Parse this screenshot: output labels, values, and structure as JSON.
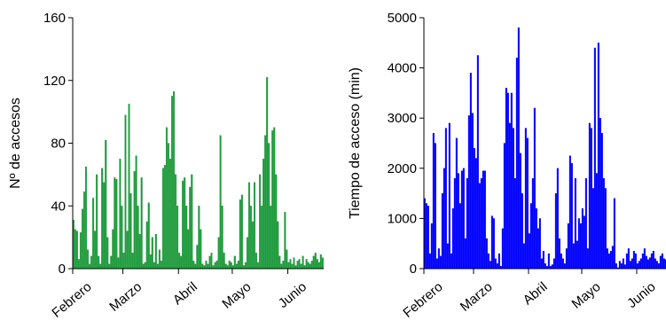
{
  "chart_data": [
    {
      "type": "bar",
      "ylabel": "Nº de accesos",
      "color": "#1e9a3c",
      "categories": [
        "Febrero",
        null,
        null,
        null,
        null,
        null,
        null,
        null,
        null,
        null,
        null,
        null,
        null,
        null,
        null,
        null,
        null,
        null,
        null,
        null,
        null,
        null,
        null,
        null,
        null,
        null,
        null,
        null,
        "Marzo",
        null,
        null,
        null,
        null,
        null,
        null,
        null,
        null,
        null,
        null,
        null,
        null,
        null,
        null,
        null,
        null,
        null,
        null,
        null,
        null,
        null,
        null,
        null,
        null,
        null,
        null,
        null,
        null,
        null,
        null,
        "Abril",
        null,
        null,
        null,
        null,
        null,
        null,
        null,
        null,
        null,
        null,
        null,
        null,
        null,
        null,
        null,
        null,
        null,
        null,
        null,
        null,
        null,
        null,
        null,
        null,
        null,
        null,
        null,
        null,
        null,
        "Mayo",
        null,
        null,
        null,
        null,
        null,
        null,
        null,
        null,
        null,
        null,
        null,
        null,
        null,
        null,
        null,
        null,
        null,
        null,
        null,
        null,
        null,
        null,
        null,
        null,
        null,
        null,
        null,
        null,
        null,
        null,
        "Junio",
        null,
        null,
        null,
        null,
        null,
        null,
        null,
        null,
        null,
        null,
        null,
        null,
        null,
        null,
        null,
        null,
        null,
        null,
        null
      ],
      "values": [
        31,
        25,
        24,
        6,
        23,
        38,
        49,
        65,
        12,
        3,
        8,
        45,
        24,
        60,
        8,
        3,
        64,
        55,
        82,
        20,
        3,
        8,
        25,
        58,
        57,
        7,
        70,
        40,
        10,
        98,
        24,
        105,
        48,
        10,
        62,
        72,
        40,
        22,
        58,
        3,
        4,
        30,
        42,
        9,
        20,
        4,
        22,
        3,
        12,
        5,
        64,
        66,
        90,
        80,
        70,
        110,
        113,
        60,
        40,
        10,
        8,
        56,
        58,
        40,
        25,
        52,
        60,
        5,
        3,
        15,
        40,
        25,
        3,
        2,
        5,
        3,
        8,
        10,
        2,
        4,
        5,
        20,
        85,
        40,
        10,
        3,
        2,
        5,
        4,
        2,
        8,
        3,
        5,
        44,
        47,
        2,
        4,
        20,
        55,
        40,
        30,
        55,
        10,
        4,
        60,
        40,
        70,
        85,
        122,
        80,
        40,
        88,
        90,
        60,
        30,
        8,
        3,
        5,
        36,
        12,
        4,
        6,
        3,
        7,
        2,
        5,
        6,
        3,
        8,
        2,
        6,
        4,
        3,
        5,
        8,
        10,
        6,
        4,
        9,
        7
      ],
      "ylim": [
        0,
        160
      ],
      "yticks": [
        0,
        40,
        80,
        120,
        160
      ]
    },
    {
      "type": "bar",
      "ylabel": "Tiempo de acceso (min)",
      "color": "#0000ff",
      "categories": [
        "Febrero",
        null,
        null,
        null,
        null,
        null,
        null,
        null,
        null,
        null,
        null,
        null,
        null,
        null,
        null,
        null,
        null,
        null,
        null,
        null,
        null,
        null,
        null,
        null,
        null,
        null,
        null,
        null,
        "Marzo",
        null,
        null,
        null,
        null,
        null,
        null,
        null,
        null,
        null,
        null,
        null,
        null,
        null,
        null,
        null,
        null,
        null,
        null,
        null,
        null,
        null,
        null,
        null,
        null,
        null,
        null,
        null,
        null,
        null,
        null,
        "Abril",
        null,
        null,
        null,
        null,
        null,
        null,
        null,
        null,
        null,
        null,
        null,
        null,
        null,
        null,
        null,
        null,
        null,
        null,
        null,
        null,
        null,
        null,
        null,
        null,
        null,
        null,
        null,
        null,
        null,
        "Mayo",
        null,
        null,
        null,
        null,
        null,
        null,
        null,
        null,
        null,
        null,
        null,
        null,
        null,
        null,
        null,
        null,
        null,
        null,
        null,
        null,
        null,
        null,
        null,
        null,
        null,
        null,
        null,
        null,
        null,
        null,
        "Junio",
        null,
        null,
        null,
        null,
        null,
        null,
        null,
        null,
        null,
        null,
        null,
        null,
        null,
        null,
        null,
        null,
        null,
        null,
        null
      ],
      "values": [
        1400,
        1300,
        1250,
        300,
        900,
        2700,
        2500,
        200,
        400,
        250,
        1500,
        2000,
        2800,
        500,
        2900,
        300,
        1200,
        1800,
        2600,
        1900,
        1300,
        1950,
        2000,
        600,
        1800,
        3050,
        3900,
        3100,
        2400,
        2200,
        4250,
        1700,
        1800,
        1950,
        1950,
        600,
        300,
        150,
        1050,
        1000,
        200,
        100,
        300,
        50,
        800,
        2500,
        3600,
        3500,
        2900,
        3500,
        2800,
        1800,
        4200,
        4800,
        2300,
        1500,
        500,
        2800,
        2600,
        700,
        1300,
        1800,
        3200,
        1200,
        800,
        1000,
        200,
        350,
        100,
        50,
        300,
        50,
        80,
        200,
        1500,
        2000,
        600,
        300,
        200,
        100,
        400,
        900,
        2250,
        2100,
        500,
        1800,
        550,
        1000,
        900,
        1200,
        1050,
        1800,
        400,
        2900,
        2800,
        1600,
        4400,
        1900,
        4500,
        3000,
        2700,
        1800,
        1600,
        400,
        300,
        350,
        450,
        1400,
        100,
        20,
        150,
        100,
        200,
        80,
        300,
        400,
        150,
        200,
        350,
        300,
        100,
        150,
        200,
        300,
        400,
        250,
        180,
        220,
        300,
        350,
        200,
        150,
        100,
        250,
        300,
        200,
        180,
        220,
        260,
        300
      ],
      "ylim": [
        0,
        5000
      ],
      "yticks": [
        0,
        1000,
        2000,
        3000,
        4000,
        5000
      ]
    }
  ]
}
